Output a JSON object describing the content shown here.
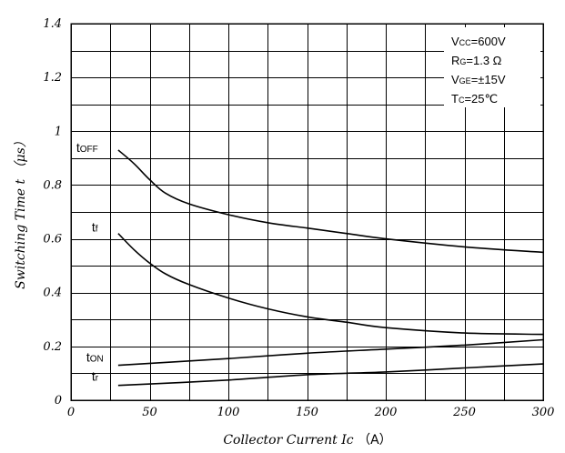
{
  "chart_data": {
    "type": "line",
    "title": "",
    "xlabel": "Collector Current",
    "xlabel_symbol": "Ic",
    "xlabel_unit": "（A）",
    "ylabel": "Switching Time t （μs）",
    "xlim": [
      0,
      300
    ],
    "ylim": [
      0,
      1.4
    ],
    "x_ticks": [
      0,
      50,
      100,
      150,
      200,
      250,
      300
    ],
    "x_tick_labels": [
      "0",
      "50",
      "100",
      "150",
      "200",
      "250",
      "300"
    ],
    "y_ticks": [
      0,
      0.2,
      0.4,
      0.6,
      0.8,
      1.0,
      1.2,
      1.4
    ],
    "y_tick_labels": [
      "0",
      "0.2",
      "0.4",
      "0.6",
      "0.8",
      "1",
      "1.2",
      "1.4"
    ],
    "grid": true,
    "series": [
      {
        "name": "tOFF",
        "label_main": "t",
        "label_sub": "OFF",
        "x": [
          30,
          40,
          50,
          60,
          75,
          100,
          125,
          150,
          175,
          200,
          250,
          300
        ],
        "y": [
          0.93,
          0.88,
          0.82,
          0.77,
          0.73,
          0.69,
          0.66,
          0.64,
          0.62,
          0.6,
          0.57,
          0.55
        ]
      },
      {
        "name": "tf",
        "label_main": "t",
        "label_sub": "f",
        "x": [
          30,
          40,
          50,
          60,
          75,
          100,
          125,
          150,
          175,
          200,
          250,
          300
        ],
        "y": [
          0.62,
          0.56,
          0.51,
          0.47,
          0.43,
          0.38,
          0.34,
          0.31,
          0.29,
          0.27,
          0.25,
          0.245
        ]
      },
      {
        "name": "tON",
        "label_main": "t",
        "label_sub": "ON",
        "x": [
          30,
          100,
          150,
          200,
          250,
          300
        ],
        "y": [
          0.13,
          0.155,
          0.175,
          0.19,
          0.205,
          0.225
        ]
      },
      {
        "name": "tr",
        "label_main": "t",
        "label_sub": "r",
        "x": [
          30,
          100,
          150,
          200,
          250,
          300
        ],
        "y": [
          0.055,
          0.075,
          0.095,
          0.105,
          0.12,
          0.135
        ]
      }
    ],
    "conditions": [
      {
        "main": "V",
        "sub": "CC",
        "rest": "=600V"
      },
      {
        "main": "R",
        "sub": "G",
        "rest": "=1.3 Ω"
      },
      {
        "main": "V",
        "sub": "GE",
        "rest": "=±15V"
      },
      {
        "main": "T",
        "sub": "C",
        "rest": "=25℃"
      }
    ]
  }
}
